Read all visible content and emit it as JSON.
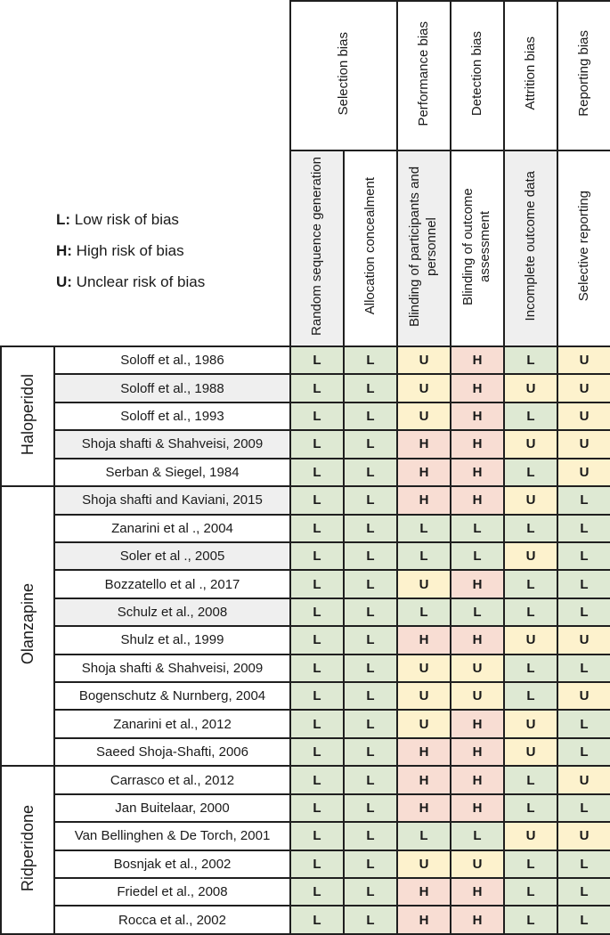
{
  "legend": {
    "items": [
      {
        "key": "L:",
        "text": " Low risk of bias"
      },
      {
        "key": "H:",
        "text": " High risk of bias"
      },
      {
        "key": "U:",
        "text": " Unclear risk of bias"
      }
    ]
  },
  "header": {
    "bias": [
      {
        "label": "Selection bias"
      },
      {
        "label": "Performance bias"
      },
      {
        "label": "Detection bias"
      },
      {
        "label": "Attrition bias"
      },
      {
        "label": "Reporting bias"
      }
    ],
    "criteria": [
      {
        "label": "Random sequence generation"
      },
      {
        "label": "Allocation concealment"
      },
      {
        "label": "Blinding of participants and personnel"
      },
      {
        "label": "Blinding of outcome assessment"
      },
      {
        "label": "Incomplete outcome data"
      },
      {
        "label": "Selective reporting"
      }
    ]
  },
  "colors": {
    "L": "#dee9d3",
    "H": "#f8ddd3",
    "U": "#fdf2cd",
    "row_shade": "#efefef",
    "border": "#1f1f1f"
  },
  "groups": [
    {
      "name": "Haloperidol",
      "studies": [
        {
          "name": "Soloff et al., 1986",
          "shaded": false,
          "ratings": [
            "L",
            "L",
            "U",
            "H",
            "L",
            "U"
          ]
        },
        {
          "name": "Soloff et al., 1988",
          "shaded": true,
          "ratings": [
            "L",
            "L",
            "U",
            "H",
            "U",
            "U"
          ]
        },
        {
          "name": "Soloff et al., 1993",
          "shaded": false,
          "ratings": [
            "L",
            "L",
            "U",
            "H",
            "L",
            "U"
          ]
        },
        {
          "name": "Shoja shafti & Shahveisi, 2009",
          "shaded": true,
          "ratings": [
            "L",
            "L",
            "H",
            "H",
            "U",
            "U"
          ]
        },
        {
          "name": "Serban & Siegel, 1984",
          "shaded": false,
          "ratings": [
            "L",
            "L",
            "H",
            "H",
            "L",
            "U"
          ]
        }
      ]
    },
    {
      "name": "Olanzapine",
      "studies": [
        {
          "name": "Shoja shafti and Kaviani, 2015",
          "shaded": true,
          "ratings": [
            "L",
            "L",
            "H",
            "H",
            "U",
            "L"
          ]
        },
        {
          "name": "Zanarini et al ., 2004",
          "shaded": false,
          "ratings": [
            "L",
            "L",
            "L",
            "L",
            "L",
            "L"
          ]
        },
        {
          "name": "Soler et al ., 2005",
          "shaded": true,
          "ratings": [
            "L",
            "L",
            "L",
            "L",
            "U",
            "L"
          ]
        },
        {
          "name": "Bozzatello et al ., 2017",
          "shaded": false,
          "ratings": [
            "L",
            "L",
            "U",
            "H",
            "L",
            "L"
          ]
        },
        {
          "name": "Schulz et al., 2008",
          "shaded": true,
          "ratings": [
            "L",
            "L",
            "L",
            "L",
            "L",
            "L"
          ]
        },
        {
          "name": "Shulz et al., 1999",
          "shaded": false,
          "ratings": [
            "L",
            "L",
            "H",
            "H",
            "U",
            "U"
          ]
        },
        {
          "name": "Shoja shafti & Shahveisi, 2009",
          "shaded": false,
          "ratings": [
            "L",
            "L",
            "U",
            "U",
            "L",
            "L"
          ]
        },
        {
          "name": "Bogenschutz & Nurnberg, 2004",
          "shaded": false,
          "ratings": [
            "L",
            "L",
            "U",
            "U",
            "L",
            "U"
          ]
        },
        {
          "name": "Zanarini et al., 2012",
          "shaded": false,
          "ratings": [
            "L",
            "L",
            "U",
            "H",
            "U",
            "L"
          ]
        },
        {
          "name": "Saeed Shoja-Shafti, 2006",
          "shaded": false,
          "ratings": [
            "L",
            "L",
            "H",
            "H",
            "U",
            "L"
          ]
        }
      ]
    },
    {
      "name": "Ridperidone",
      "studies": [
        {
          "name": "Carrasco et al., 2012",
          "shaded": false,
          "ratings": [
            "L",
            "L",
            "H",
            "H",
            "L",
            "U"
          ]
        },
        {
          "name": "Jan Buitelaar, 2000",
          "shaded": false,
          "ratings": [
            "L",
            "L",
            "H",
            "H",
            "L",
            "L"
          ]
        },
        {
          "name": "Van Bellinghen & De Torch, 2001",
          "shaded": false,
          "ratings": [
            "L",
            "L",
            "L",
            "L",
            "U",
            "U"
          ]
        },
        {
          "name": "Bosnjak et al., 2002",
          "shaded": false,
          "ratings": [
            "L",
            "L",
            "U",
            "U",
            "L",
            "L"
          ]
        },
        {
          "name": "Friedel et al., 2008",
          "shaded": false,
          "ratings": [
            "L",
            "L",
            "H",
            "H",
            "L",
            "L"
          ]
        },
        {
          "name": "Rocca et al., 2002",
          "shaded": false,
          "ratings": [
            "L",
            "L",
            "H",
            "H",
            "L",
            "L"
          ]
        }
      ]
    }
  ]
}
